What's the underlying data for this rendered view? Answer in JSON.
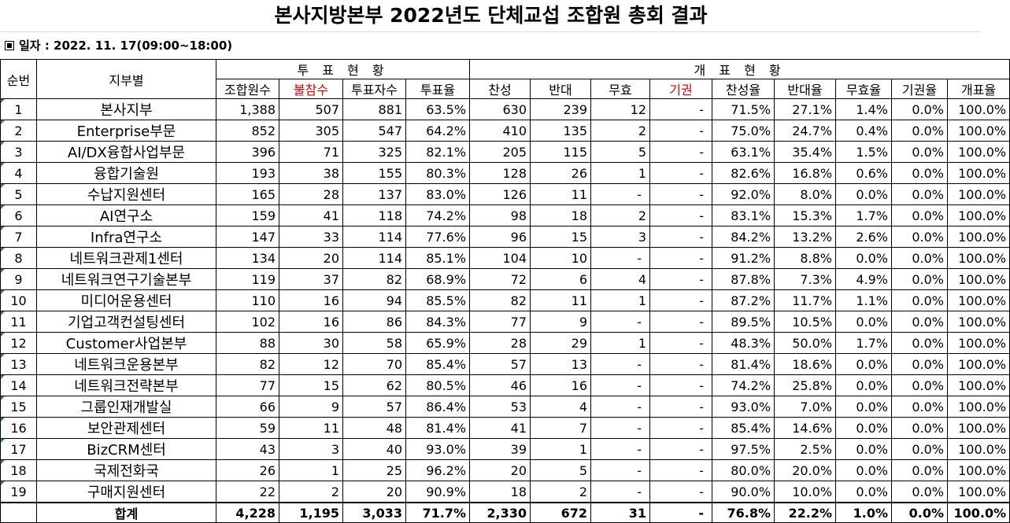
{
  "title": "본사지방본부 2022년도 단체교섭 조합원 총회 결과",
  "date_line": "일자 : 2022. 11. 17(09:00~18:00)",
  "headers": {
    "seq": "순번",
    "branch": "지부별",
    "vote_group": "투 표 현 황",
    "count_group": "개 표 현 황",
    "cols": [
      "조합원수",
      "불참수",
      "투표자수",
      "투표율",
      "찬성",
      "반대",
      "무효",
      "기권",
      "찬성율",
      "반대율",
      "무효율",
      "기권율",
      "개표율"
    ]
  },
  "rows": [
    {
      "no": "1",
      "name": "본사지부",
      "v": [
        "1,388",
        "507",
        "881",
        "63.5%",
        "630",
        "239",
        "12",
        "-",
        "71.5%",
        "27.1%",
        "1.4%",
        "0.0%",
        "100.0%"
      ]
    },
    {
      "no": "2",
      "name": "Enterprise부문",
      "v": [
        "852",
        "305",
        "547",
        "64.2%",
        "410",
        "135",
        "2",
        "-",
        "75.0%",
        "24.7%",
        "0.4%",
        "0.0%",
        "100.0%"
      ]
    },
    {
      "no": "3",
      "name": "AI/DX융합사업부문",
      "v": [
        "396",
        "71",
        "325",
        "82.1%",
        "205",
        "115",
        "5",
        "-",
        "63.1%",
        "35.4%",
        "1.5%",
        "0.0%",
        "100.0%"
      ]
    },
    {
      "no": "4",
      "name": "융합기술원",
      "v": [
        "193",
        "38",
        "155",
        "80.3%",
        "128",
        "26",
        "1",
        "-",
        "82.6%",
        "16.8%",
        "0.6%",
        "0.0%",
        "100.0%"
      ]
    },
    {
      "no": "5",
      "name": "수납지원센터",
      "v": [
        "165",
        "28",
        "137",
        "83.0%",
        "126",
        "11",
        "-",
        "-",
        "92.0%",
        "8.0%",
        "0.0%",
        "0.0%",
        "100.0%"
      ]
    },
    {
      "no": "6",
      "name": "AI연구소",
      "v": [
        "159",
        "41",
        "118",
        "74.2%",
        "98",
        "18",
        "2",
        "-",
        "83.1%",
        "15.3%",
        "1.7%",
        "0.0%",
        "100.0%"
      ]
    },
    {
      "no": "7",
      "name": "Infra연구소",
      "v": [
        "147",
        "33",
        "114",
        "77.6%",
        "96",
        "15",
        "3",
        "-",
        "84.2%",
        "13.2%",
        "2.6%",
        "0.0%",
        "100.0%"
      ]
    },
    {
      "no": "8",
      "name": "네트워크관제1센터",
      "v": [
        "134",
        "20",
        "114",
        "85.1%",
        "104",
        "10",
        "-",
        "-",
        "91.2%",
        "8.8%",
        "0.0%",
        "0.0%",
        "100.0%"
      ]
    },
    {
      "no": "9",
      "name": "네트워크연구기술본부",
      "v": [
        "119",
        "37",
        "82",
        "68.9%",
        "72",
        "6",
        "4",
        "-",
        "87.8%",
        "7.3%",
        "4.9%",
        "0.0%",
        "100.0%"
      ]
    },
    {
      "no": "10",
      "name": "미디어운용센터",
      "v": [
        "110",
        "16",
        "94",
        "85.5%",
        "82",
        "11",
        "1",
        "-",
        "87.2%",
        "11.7%",
        "1.1%",
        "0.0%",
        "100.0%"
      ]
    },
    {
      "no": "11",
      "name": "기업고객컨설팅센터",
      "v": [
        "102",
        "16",
        "86",
        "84.3%",
        "77",
        "9",
        "-",
        "-",
        "89.5%",
        "10.5%",
        "0.0%",
        "0.0%",
        "100.0%"
      ]
    },
    {
      "no": "12",
      "name": "Customer사업본부",
      "v": [
        "88",
        "30",
        "58",
        "65.9%",
        "28",
        "29",
        "1",
        "-",
        "48.3%",
        "50.0%",
        "1.7%",
        "0.0%",
        "100.0%"
      ]
    },
    {
      "no": "13",
      "name": "네트워크운용본부",
      "v": [
        "82",
        "12",
        "70",
        "85.4%",
        "57",
        "13",
        "-",
        "-",
        "81.4%",
        "18.6%",
        "0.0%",
        "0.0%",
        "100.0%"
      ]
    },
    {
      "no": "14",
      "name": "네트워크전략본부",
      "v": [
        "77",
        "15",
        "62",
        "80.5%",
        "46",
        "16",
        "-",
        "-",
        "74.2%",
        "25.8%",
        "0.0%",
        "0.0%",
        "100.0%"
      ]
    },
    {
      "no": "15",
      "name": "그룹인재개발실",
      "v": [
        "66",
        "9",
        "57",
        "86.4%",
        "53",
        "4",
        "-",
        "-",
        "93.0%",
        "7.0%",
        "0.0%",
        "0.0%",
        "100.0%"
      ]
    },
    {
      "no": "16",
      "name": "보안관제센터",
      "v": [
        "59",
        "11",
        "48",
        "81.4%",
        "41",
        "7",
        "-",
        "-",
        "85.4%",
        "14.6%",
        "0.0%",
        "0.0%",
        "100.0%"
      ]
    },
    {
      "no": "17",
      "name": "BizCRM센터",
      "v": [
        "43",
        "3",
        "40",
        "93.0%",
        "39",
        "1",
        "-",
        "-",
        "97.5%",
        "2.5%",
        "0.0%",
        "0.0%",
        "100.0%"
      ]
    },
    {
      "no": "18",
      "name": "국제전화국",
      "v": [
        "26",
        "1",
        "25",
        "96.2%",
        "20",
        "5",
        "-",
        "-",
        "80.0%",
        "20.0%",
        "0.0%",
        "0.0%",
        "100.0%"
      ]
    },
    {
      "no": "19",
      "name": "구매지원센터",
      "v": [
        "22",
        "2",
        "20",
        "90.9%",
        "18",
        "2",
        "-",
        "-",
        "90.0%",
        "10.0%",
        "0.0%",
        "0.0%",
        "100.0%"
      ]
    }
  ],
  "total": {
    "label": "합계",
    "v": [
      "4,228",
      "1,195",
      "3,033",
      "71.7%",
      "2,330",
      "672",
      "31",
      "-",
      "76.8%",
      "22.2%",
      "1.0%",
      "0.0%",
      "100.0%"
    ]
  },
  "colors": {
    "highlight": "#e00000",
    "marker": "#1f8f3a"
  }
}
